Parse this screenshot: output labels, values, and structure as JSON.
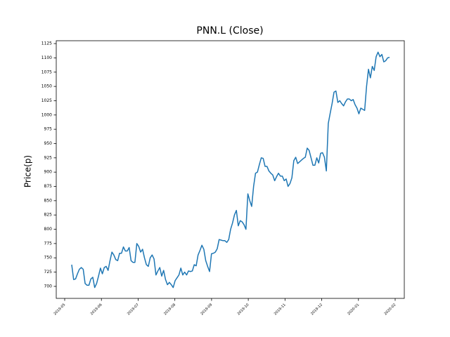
{
  "chart_data": {
    "type": "line",
    "title": "PNN.L (Close)",
    "y_label": "Price(p)",
    "color": "#1f77b4",
    "xticks": [
      "2019-05",
      "2019-06",
      "2019-07",
      "2019-08",
      "2019-09",
      "2019-10",
      "2019-11",
      "2019-12",
      "2020-01",
      "2020-02"
    ],
    "values": [
      738,
      712,
      713,
      722,
      730,
      733,
      730,
      705,
      702,
      702,
      713,
      716,
      698,
      705,
      718,
      732,
      722,
      733,
      735,
      728,
      745,
      760,
      755,
      747,
      745,
      758,
      758,
      769,
      762,
      762,
      768,
      745,
      742,
      742,
      775,
      770,
      760,
      765,
      750,
      738,
      735,
      750,
      755,
      748,
      720,
      727,
      733,
      718,
      728,
      712,
      703,
      707,
      703,
      698,
      710,
      715,
      720,
      732,
      720,
      725,
      720,
      727,
      726,
      727,
      738,
      736,
      755,
      763,
      772,
      765,
      745,
      735,
      726,
      757,
      758,
      760,
      766,
      782,
      781,
      780,
      780,
      777,
      782,
      800,
      811,
      825,
      833,
      806,
      815,
      813,
      808,
      800,
      862,
      850,
      840,
      875,
      898,
      900,
      913,
      925,
      924,
      910,
      910,
      902,
      898,
      895,
      885,
      892,
      898,
      893,
      893,
      885,
      888,
      875,
      880,
      890,
      920,
      926,
      915,
      918,
      921,
      924,
      926,
      942,
      938,
      925,
      912,
      912,
      925,
      916,
      933,
      934,
      926,
      902,
      985,
      1003,
      1020,
      1040,
      1042,
      1022,
      1025,
      1020,
      1016,
      1023,
      1028,
      1028,
      1025,
      1027,
      1018,
      1012,
      1002,
      1012,
      1010,
      1008,
      1050,
      1080,
      1065,
      1085,
      1078,
      1102,
      1110,
      1102,
      1106,
      1093,
      1095,
      1100,
      1101
    ],
    "ylim": [
      679,
      1130
    ],
    "yticks": [
      700,
      725,
      750,
      775,
      800,
      825,
      850,
      875,
      900,
      925,
      950,
      975,
      1000,
      1025,
      1050,
      1075,
      1100,
      1125
    ]
  }
}
